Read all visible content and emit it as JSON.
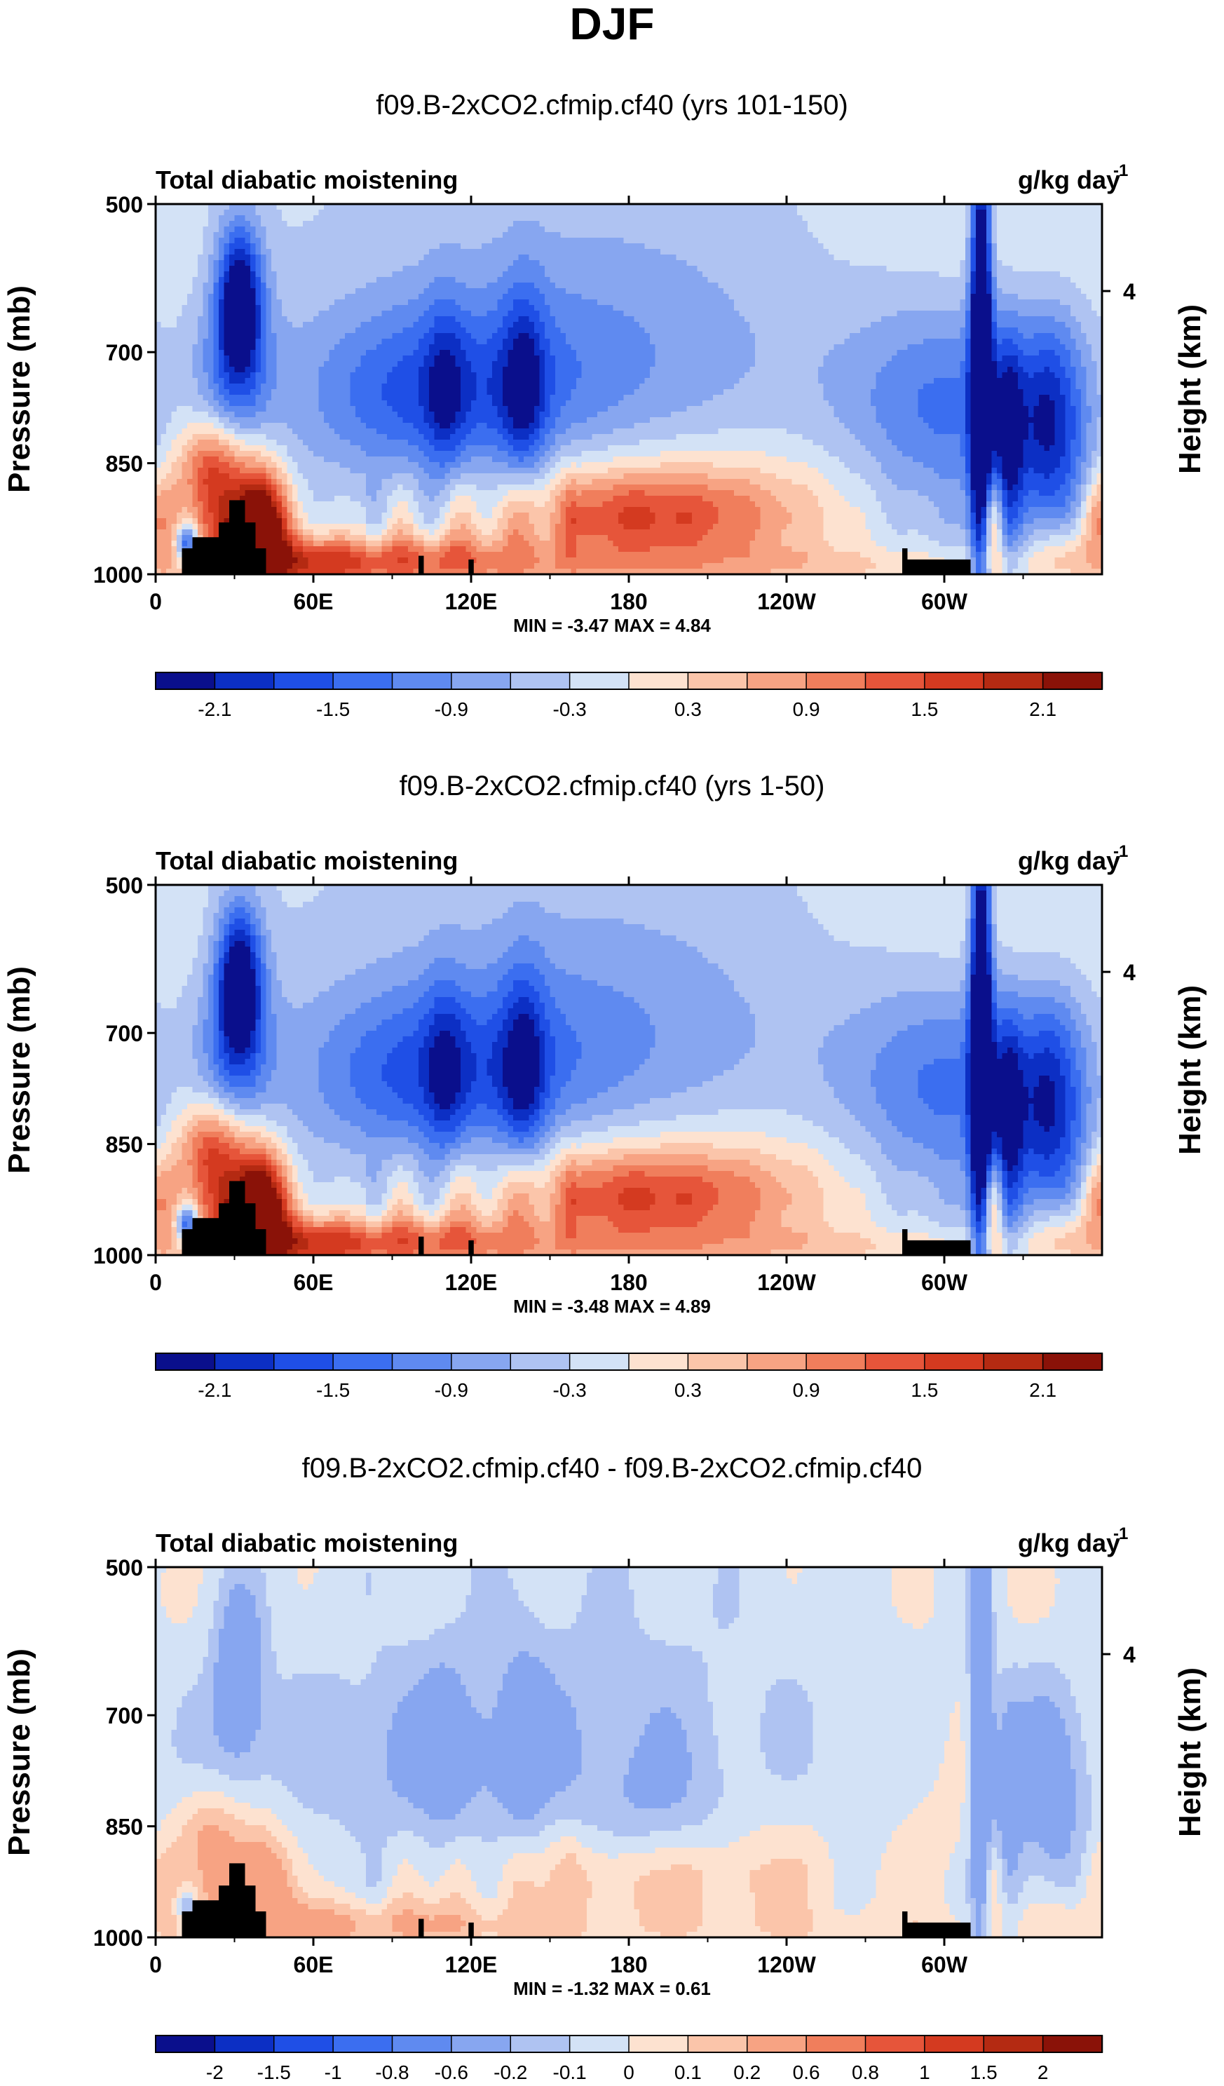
{
  "main_title": "DJF",
  "chart_data": [
    {
      "type": "heatmap",
      "title": "f09.B-2xCO2.cfmip.cf40 (yrs 101-150)",
      "left_label": "Total diabatic moistening",
      "units_base": "g/kg day",
      "units_exp": "-1",
      "ylabel": "Pressure (mb)",
      "ylabel_right": "Height (km)",
      "yticks": [
        "500",
        "700",
        "850",
        "1000"
      ],
      "yticks_right": [
        "4"
      ],
      "xticks": [
        "0",
        "60E",
        "120E",
        "180",
        "120W",
        "60W"
      ],
      "xlim": [
        0,
        360
      ],
      "stats": "MIN = -3.47  MAX =  4.84",
      "min": -3.47,
      "max": 4.84,
      "colorbar_labels": [
        "-2.1",
        "-1.5",
        "-0.9",
        "-0.3",
        "0.3",
        "0.9",
        "1.5",
        "2.1"
      ],
      "colorbar_label_pos": [
        1,
        3,
        5,
        7,
        9,
        11,
        13,
        15
      ],
      "field_scale": 1.0
    },
    {
      "type": "heatmap",
      "title": "f09.B-2xCO2.cfmip.cf40 (yrs 1-50)",
      "left_label": "Total diabatic moistening",
      "units_base": "g/kg day",
      "units_exp": "-1",
      "ylabel": "Pressure (mb)",
      "ylabel_right": "Height (km)",
      "yticks": [
        "500",
        "700",
        "850",
        "1000"
      ],
      "yticks_right": [
        "4"
      ],
      "xticks": [
        "0",
        "60E",
        "120E",
        "180",
        "120W",
        "60W"
      ],
      "xlim": [
        0,
        360
      ],
      "stats": "MIN = -3.48  MAX =  4.89",
      "min": -3.48,
      "max": 4.89,
      "colorbar_labels": [
        "-2.1",
        "-1.5",
        "-0.9",
        "-0.3",
        "0.3",
        "0.9",
        "1.5",
        "2.1"
      ],
      "colorbar_label_pos": [
        1,
        3,
        5,
        7,
        9,
        11,
        13,
        15
      ],
      "field_scale": 1.0
    },
    {
      "type": "heatmap",
      "title": "f09.B-2xCO2.cfmip.cf40 - f09.B-2xCO2.cfmip.cf40",
      "left_label": "Total diabatic moistening",
      "units_base": "g/kg day",
      "units_exp": "-1",
      "ylabel": "Pressure (mb)",
      "ylabel_right": "Height (km)",
      "yticks": [
        "500",
        "700",
        "850",
        "1000"
      ],
      "yticks_right": [
        "4"
      ],
      "xticks": [
        "0",
        "60E",
        "120E",
        "180",
        "120W",
        "60W"
      ],
      "xlim": [
        0,
        360
      ],
      "stats": "MIN = -1.32  MAX =  0.61",
      "min": -1.32,
      "max": 0.61,
      "colorbar_labels": [
        "-2",
        "-1.5",
        "-1",
        "-0.8",
        "-0.6",
        "-0.2",
        "-0.1",
        "0",
        "0.1",
        "0.2",
        "0.6",
        "0.8",
        "1",
        "1.5",
        "2"
      ],
      "colorbar_label_pos": [
        1,
        2,
        3,
        4,
        5,
        6,
        7,
        8,
        9,
        10,
        11,
        12,
        13,
        14,
        15
      ],
      "field_scale": 0.25
    }
  ],
  "colors": {
    "palette": [
      "#0a0f8c",
      "#0c2fc4",
      "#1f4fe6",
      "#3b6ef0",
      "#5f8af0",
      "#87a6f0",
      "#afc3f2",
      "#d3e2f6",
      "#fde2d0",
      "#fbc5aa",
      "#f7a383",
      "#f07e5c",
      "#e6553a",
      "#d43a20",
      "#b42a12",
      "#8a1208"
    ],
    "topography": "#000000"
  }
}
